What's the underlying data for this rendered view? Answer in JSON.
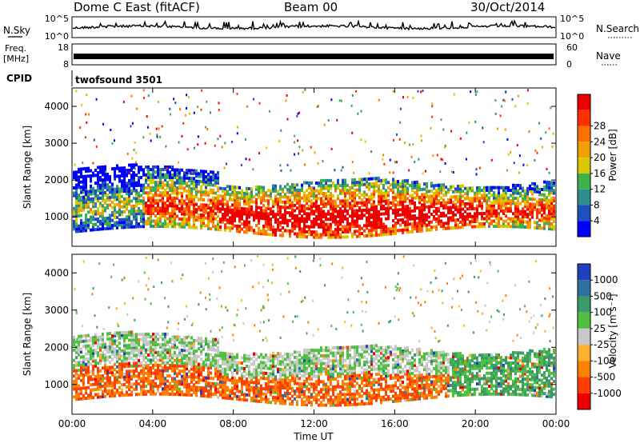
{
  "header": {
    "station": "Dome C East (fitACF)",
    "beam": "Beam 00",
    "date": "30/Oct/2014"
  },
  "strip_panels": {
    "nsky_label": "N.Sky",
    "nsky_ticks": [
      "10^5",
      "10^0"
    ],
    "nsearch_label": "N.Search",
    "nsearch_ticks": [
      "10^5",
      "10^0"
    ],
    "freq_label_1": "Freq.",
    "freq_label_2": "[MHz]",
    "freq_ticks": [
      "18",
      "8"
    ],
    "nave_label": "Nave",
    "nave_ticks": [
      "60",
      "0"
    ],
    "cpid_label": "CPID",
    "cpid_value": "twofsound 3501"
  },
  "colors": {
    "power": [
      "#0000ff",
      "#1f4fbf",
      "#2f8f8f",
      "#3cb34a",
      "#d8c900",
      "#f0a000",
      "#ff7000",
      "#ff3000",
      "#ee0000"
    ],
    "velocity": [
      "#2040c0",
      "#3070a0",
      "#3a9a6a",
      "#50c040",
      "#c8c8c8",
      "#ffb030",
      "#ff8000",
      "#ff4000",
      "#ee0000"
    ]
  },
  "chart_data": [
    {
      "type": "heatmap",
      "name": "power-panel",
      "ylabel": "Slant Range [km]",
      "xlabel": "",
      "x_ticks": [
        "00:00",
        "04:00",
        "08:00",
        "12:00",
        "16:00",
        "20:00",
        "00:00"
      ],
      "y_ticks": [
        "1000",
        "2000",
        "3000",
        "4000"
      ],
      "ylim": [
        200,
        4500
      ],
      "colorbar_label": "Power [dB]",
      "colorbar_ticks": [
        "4",
        "8",
        "12",
        "16",
        "20",
        "24",
        "28"
      ]
    },
    {
      "type": "heatmap",
      "name": "velocity-panel",
      "ylabel": "Slant Range [km]",
      "xlabel": "Time UT",
      "x_ticks": [
        "00:00",
        "04:00",
        "08:00",
        "12:00",
        "16:00",
        "20:00",
        "00:00"
      ],
      "y_ticks": [
        "1000",
        "2000",
        "3000",
        "4000"
      ],
      "ylim": [
        200,
        4500
      ],
      "colorbar_label": "Velocity [m s⁻¹]",
      "colorbar_ticks": [
        "1000",
        "500",
        "100",
        "25",
        "-25",
        "-100",
        "-500",
        "-1000"
      ]
    }
  ]
}
